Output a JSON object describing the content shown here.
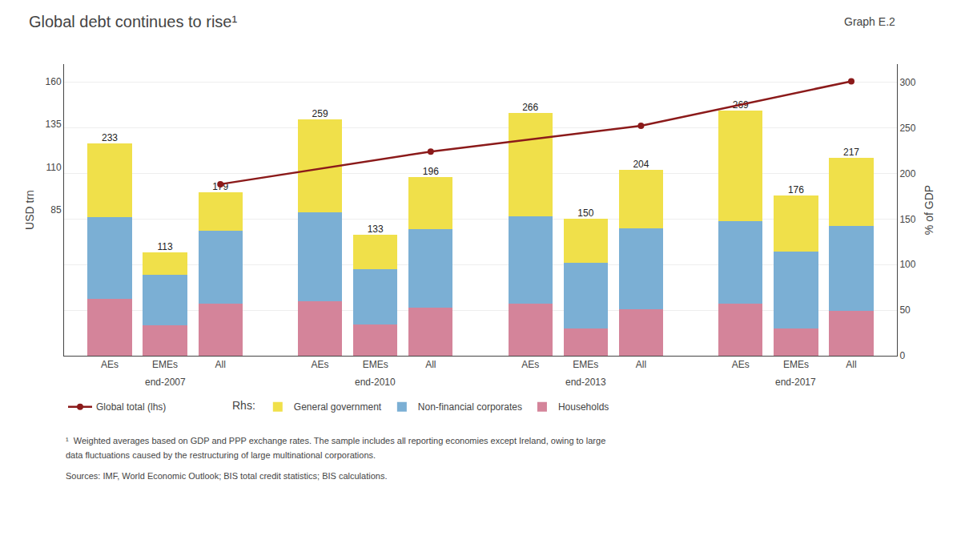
{
  "chart_data": {
    "type": "bar",
    "title": "Global debt continues to rise¹",
    "ylabel": "% of GDP",
    "y2label": "USD trn",
    "categories": [
      "AEs",
      "EMEs",
      "All",
      "AEs",
      "EMEs",
      "All",
      "AEs",
      "EMEs",
      "All",
      "AEs",
      "EMEs",
      "All"
    ],
    "groups": [
      "end-2007",
      "end-2010",
      "end-2013",
      "end-2017"
    ],
    "stacked": true,
    "series": [
      {
        "name": "Households",
        "type": "bar",
        "color": "#d4849a",
        "values": [
          62,
          33,
          57,
          60,
          34,
          53,
          57,
          30,
          51,
          57,
          30,
          49
        ]
      },
      {
        "name": "Non-financial corporates",
        "type": "bar",
        "color": "#7bafd4",
        "values": [
          90,
          56,
          80,
          97,
          61,
          86,
          96,
          72,
          89,
          91,
          84,
          93
        ]
      },
      {
        "name": "General government",
        "type": "bar",
        "color": "#f0e04a",
        "values": [
          81,
          24,
          42,
          102,
          38,
          57,
          113,
          48,
          64,
          121,
          62,
          75
        ]
      },
      {
        "name": "Global total (lhs)",
        "type": "line",
        "axis": "y2",
        "color": "#8b1a1a",
        "marker": "o",
        "line_style": "solid",
        "values": [
          null,
          null,
          100,
          null,
          null,
          119,
          null,
          null,
          134,
          null,
          null,
          160
        ]
      }
    ],
    "totals": [
      233,
      113,
      179,
      259,
      133,
      196,
      266,
      150,
      204,
      269,
      176,
      217
    ],
    "ylim": [
      0,
      320
    ],
    "yticks": [
      0,
      50,
      100,
      150,
      200,
      250,
      300
    ],
    "y2lim": [
      0,
      170
    ],
    "y2ticks": [
      85,
      110,
      135,
      160
    ],
    "grid": true,
    "legend": "lower left",
    "legend_title": "Rhs:",
    "annotations": [
      "Graph E.2",
      "¹  Weighted averages based on GDP and PPP exchange rates. The sample includes all reporting economies except Ireland, owing to large",
      "data fluctuations caused by the restructuring of large multinational corporations.",
      "Sources: IMF, World Economic Outlook; BIS total credit statistics; BIS calculations."
    ]
  }
}
